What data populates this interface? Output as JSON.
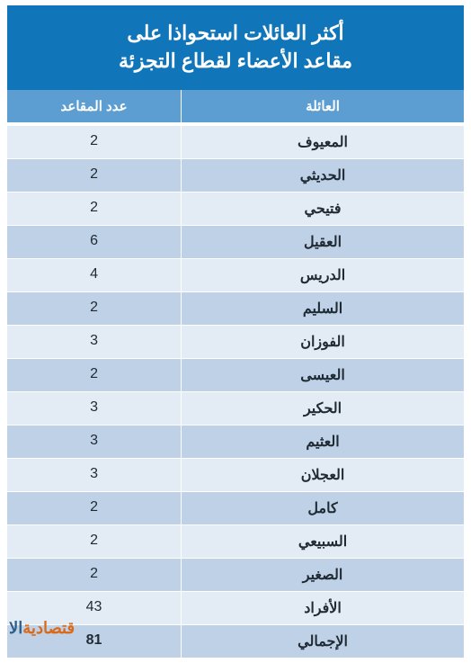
{
  "title": {
    "line1": "أكثر العائلات استحواذا على",
    "line2": "مقاعد الأعضاء لقطاع التجزئة"
  },
  "columns": {
    "family": "العائلة",
    "seats": "عدد المقاعد"
  },
  "rows": [
    {
      "family": "المعيوف",
      "seats": "2"
    },
    {
      "family": "الحديثي",
      "seats": "2"
    },
    {
      "family": "فتيحي",
      "seats": "2"
    },
    {
      "family": "العقيل",
      "seats": "6"
    },
    {
      "family": "الدريس",
      "seats": "4"
    },
    {
      "family": "السليم",
      "seats": "2"
    },
    {
      "family": "الفوزان",
      "seats": "3"
    },
    {
      "family": "العيسى",
      "seats": "2"
    },
    {
      "family": "الحكير",
      "seats": "3"
    },
    {
      "family": "العثيم",
      "seats": "3"
    },
    {
      "family": "العجلان",
      "seats": "3"
    },
    {
      "family": "كامل",
      "seats": "2"
    },
    {
      "family": "السبيعي",
      "seats": "2"
    },
    {
      "family": "الصغير",
      "seats": "2"
    },
    {
      "family": "الأفراد",
      "seats": "43"
    }
  ],
  "total": {
    "family": "الإجمالي",
    "seats": "81"
  },
  "logo": {
    "al": "الا",
    "rest": "قتصادية"
  },
  "style": {
    "title_bg": "#1176b9",
    "title_color": "#ffffff",
    "header_bg": "#5d9ed2",
    "row_odd_bg": "#e3ebf4",
    "row_even_bg": "#bfd1e6",
    "text_color": "#1f2a34",
    "logo_orange": "#d96a1a",
    "logo_blue": "#2d5f8a",
    "col_family_width": "62%",
    "col_seats_width": "38%",
    "title_fontsize": 22,
    "header_fontsize": 15,
    "cell_fontsize": 16
  }
}
